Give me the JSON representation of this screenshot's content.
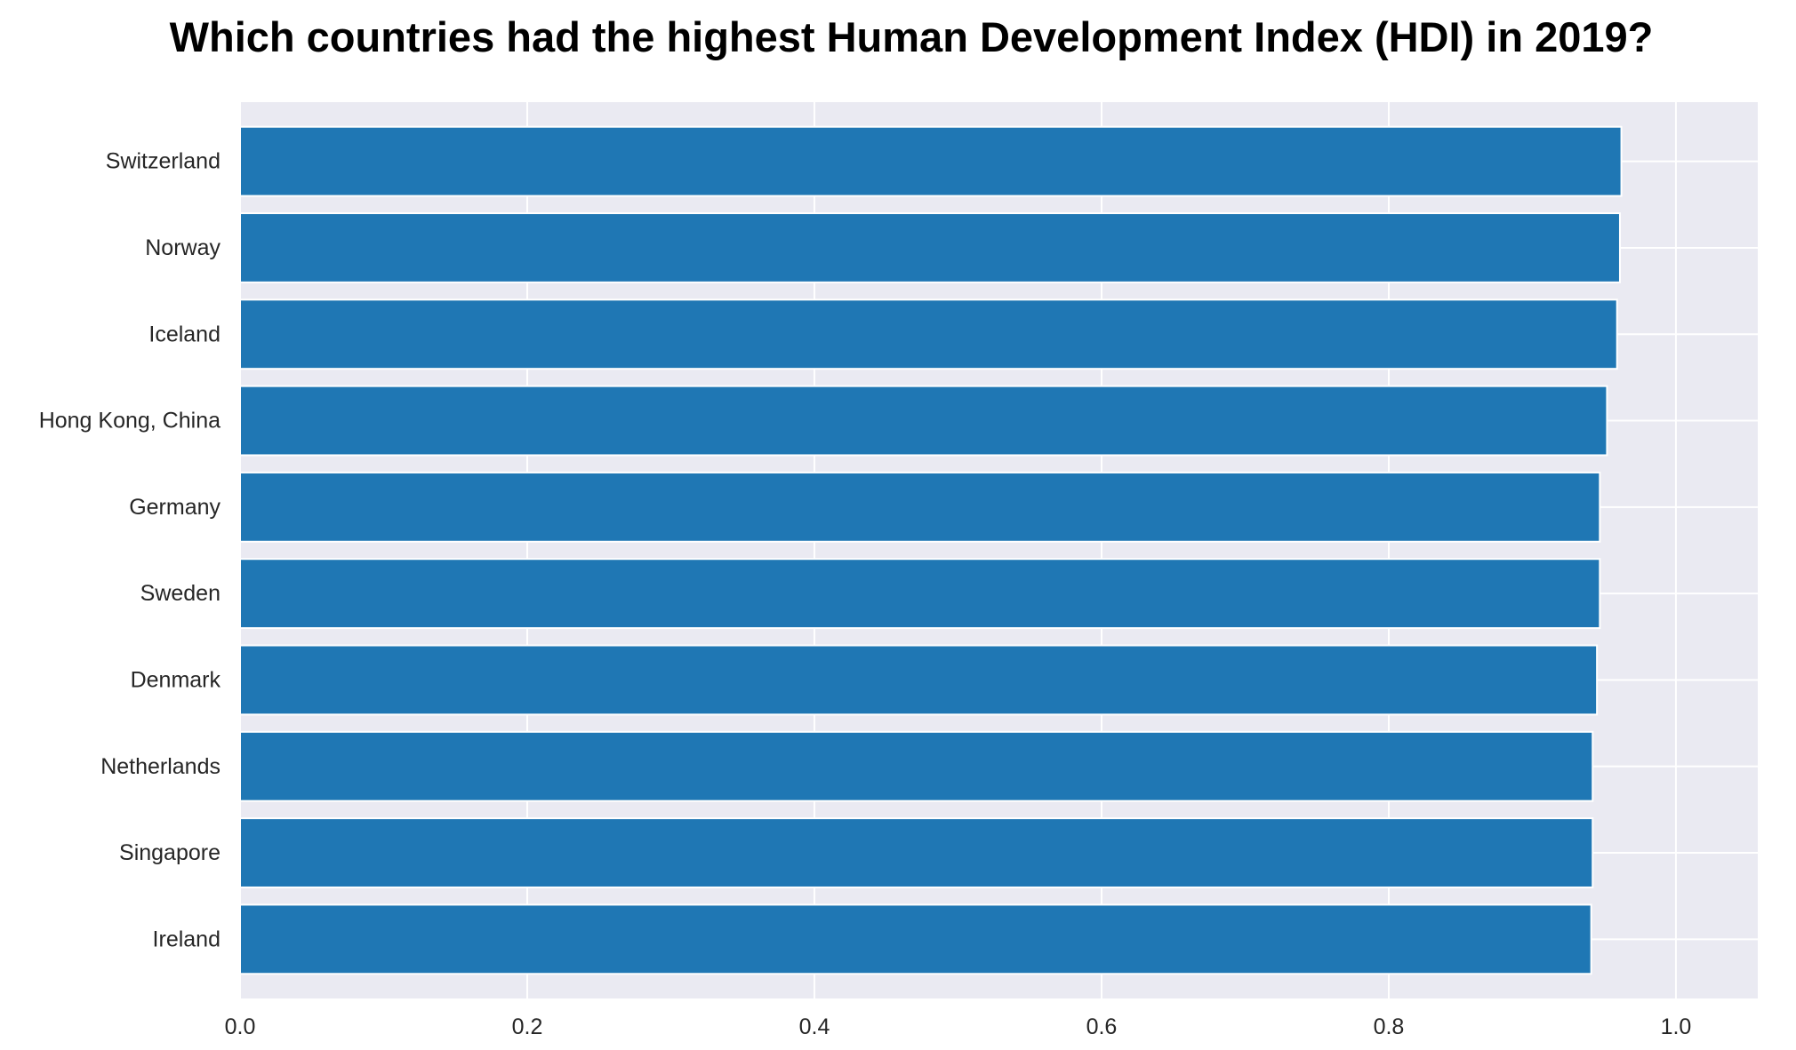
{
  "chart_data": {
    "type": "bar",
    "orientation": "horizontal",
    "title": "Which countries had the highest Human Development Index (HDI) in 2019?",
    "xlabel": "",
    "ylabel": "",
    "categories": [
      "Switzerland",
      "Norway",
      "Iceland",
      "Hong Kong, China",
      "Germany",
      "Sweden",
      "Denmark",
      "Netherlands",
      "Singapore",
      "Ireland"
    ],
    "values": [
      0.962,
      0.961,
      0.959,
      0.952,
      0.947,
      0.947,
      0.945,
      0.942,
      0.942,
      0.941
    ],
    "xlim": [
      0,
      1.057
    ],
    "xticks": [
      "0.0",
      "0.2",
      "0.4",
      "0.6",
      "0.8",
      "1.0"
    ],
    "xtick_values": [
      0,
      0.2,
      0.4,
      0.6,
      0.8,
      1.0
    ],
    "grid": true,
    "colors": {
      "bar": "#1f77b4",
      "plot_background": "#eaeaf2",
      "grid": "#ffffff"
    }
  }
}
